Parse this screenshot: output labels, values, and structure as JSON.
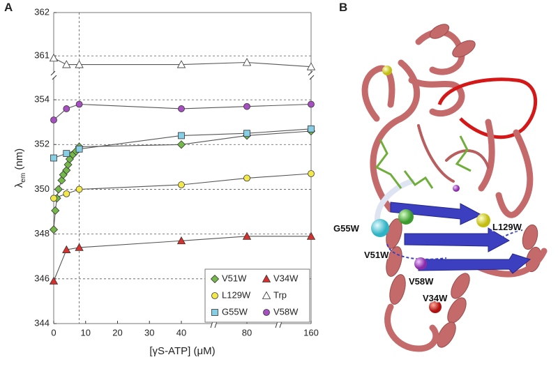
{
  "panel_labels": [
    "A",
    "B"
  ],
  "chart_data": {
    "type": "scatter",
    "ylabel": {
      "main": "λ",
      "sub": "em",
      "unit": " (nm)"
    },
    "xlabel": "[γS-ATP] (μM)",
    "xlim": [
      0,
      160
    ],
    "x_segments": [
      [
        0,
        40
      ],
      [
        40,
        80
      ],
      [
        80,
        160
      ]
    ],
    "xticks": [
      0,
      10,
      20,
      30,
      40,
      80,
      160
    ],
    "ylim": [
      344,
      362
    ],
    "y_segments": [
      [
        344,
        355
      ],
      [
        360.6,
        362
      ]
    ],
    "yticks": [
      344,
      346,
      348,
      350,
      352,
      354,
      361,
      362
    ],
    "vline_x": 8,
    "grid": true,
    "legend_position": "lower right",
    "series": [
      {
        "name": "V51W",
        "color": "#74b84a",
        "marker": "diamond",
        "x": [
          0,
          0.5,
          1,
          1.5,
          2.5,
          3,
          4,
          4.5,
          5,
          6,
          7,
          8,
          40,
          80,
          160
        ],
        "values": [
          348.2,
          349.05,
          349.6,
          350.0,
          350.4,
          350.65,
          350.85,
          351.1,
          351.35,
          351.55,
          351.7,
          351.9,
          352.0,
          352.4,
          352.6
        ]
      },
      {
        "name": "L129W",
        "color": "#f3e84a",
        "marker": "circle",
        "x": [
          0,
          4,
          8,
          40,
          80,
          160
        ],
        "values": [
          349.6,
          349.8,
          350.0,
          350.2,
          350.5,
          350.7
        ]
      },
      {
        "name": "G55W",
        "color": "#86cde6",
        "marker": "square",
        "x": [
          0,
          4,
          8,
          40,
          80,
          160
        ],
        "values": [
          351.4,
          351.6,
          351.8,
          352.4,
          352.5,
          352.7
        ]
      },
      {
        "name": "V34W",
        "color": "#d8302c",
        "marker": "triangle",
        "x": [
          0,
          4,
          8,
          40,
          80,
          160
        ],
        "values": [
          345.9,
          347.3,
          347.4,
          347.7,
          347.9,
          347.9
        ]
      },
      {
        "name": "Trp",
        "color": "#ffffff",
        "marker": "triangle",
        "x": [
          0,
          4,
          8,
          40,
          80,
          160
        ],
        "values": [
          360.95,
          360.8,
          360.8,
          360.8,
          360.85,
          360.75
        ]
      },
      {
        "name": "V58W",
        "color": "#a64fc0",
        "marker": "circle",
        "x": [
          0,
          4,
          8,
          40,
          80,
          160
        ],
        "values": [
          353.1,
          353.6,
          353.8,
          353.6,
          353.7,
          353.8
        ]
      }
    ]
  },
  "structure": {
    "labels": [
      "G55W",
      "V51W",
      "L129W",
      "V58W",
      "V34W"
    ]
  }
}
